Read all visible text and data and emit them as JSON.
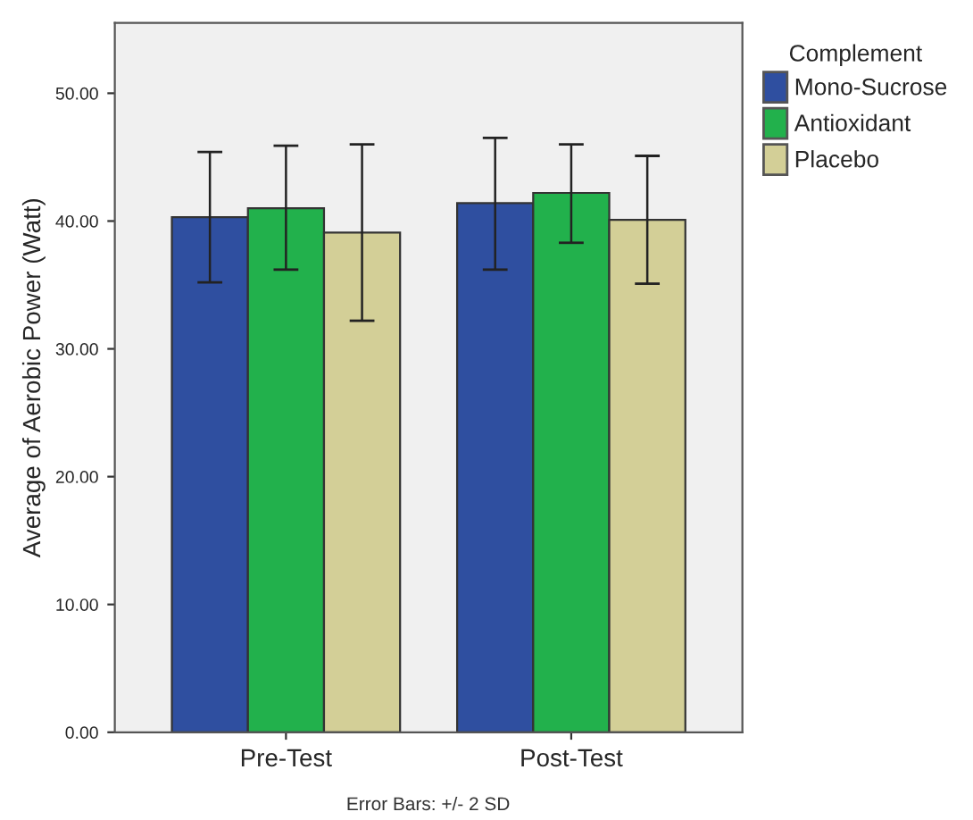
{
  "chart_data": {
    "type": "bar",
    "ylabel": "Average of Aerobic Power (Watt)",
    "legend_title": "Complement",
    "categories": [
      "Pre-Test",
      "Post-Test"
    ],
    "series": [
      {
        "name": "Mono-Sucrose",
        "color": "#2f4fa0",
        "values": [
          40.3,
          41.4
        ],
        "errors": [
          [
            35.2,
            45.4
          ],
          [
            36.2,
            46.5
          ]
        ]
      },
      {
        "name": "Antioxidant",
        "color": "#22b14c",
        "values": [
          41.0,
          42.2
        ],
        "errors": [
          [
            36.2,
            45.9
          ],
          [
            38.3,
            46.0
          ]
        ]
      },
      {
        "name": "Placebo",
        "color": "#d3cf97",
        "values": [
          39.1,
          40.1
        ],
        "errors": [
          [
            32.2,
            46.0
          ],
          [
            35.1,
            45.1
          ]
        ]
      }
    ],
    "ylim": [
      0,
      55.5
    ],
    "yticks": [
      {
        "value": 0,
        "label": "0.00"
      },
      {
        "value": 10,
        "label": "10.00"
      },
      {
        "value": 20,
        "label": "20.00"
      },
      {
        "value": 30,
        "label": "30.00"
      },
      {
        "value": 40,
        "label": "40.00"
      },
      {
        "value": 50,
        "label": "50.00"
      }
    ],
    "annotations": [
      "Error Bars: +/- 2 SD"
    ],
    "legend": "top right",
    "grid": false
  }
}
